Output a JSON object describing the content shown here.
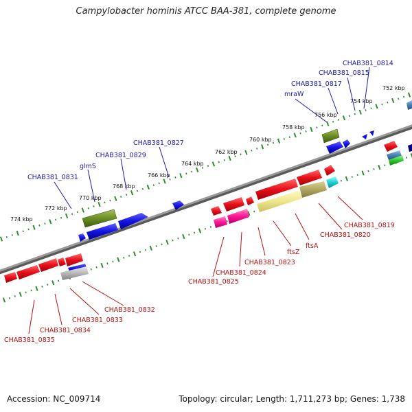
{
  "title": "Campylobacter hominis ATCC BAA-381, complete genome",
  "footer": {
    "accession": "Accession: NC_009714",
    "summary": "Topology: circular; Length: 1,711,273 bp; Genes: 1,738"
  },
  "scale_labels": [
    "752 kbp",
    "754 kbp",
    "756 kbp",
    "758 kbp",
    "760 kbp",
    "762 kbp",
    "764 kbp",
    "766 kbp",
    "768 kbp",
    "770 kbp",
    "772 kbp",
    "774 kbp"
  ],
  "forward_labels": [
    "CHAB381_0814",
    "CHAB381_0815",
    "CHAB381_0817",
    "mraW",
    "CHAB381_0827",
    "CHAB381_0829",
    "glmS",
    "CHAB381_0831"
  ],
  "reverse_labels": [
    "CHAB381_0819",
    "CHAB381_0820",
    "ftsA",
    "ftsZ",
    "CHAB381_0823",
    "CHAB381_0824",
    "CHAB381_0825",
    "CHAB381_0832",
    "CHAB381_0833",
    "CHAB381_0834",
    "CHAB381_0835"
  ],
  "colors": {
    "backbone": "#8a8a8a",
    "tick": "#2e8b2e",
    "forward_label": "#1a1aa8",
    "reverse_label": "#b81010",
    "red_gene": "#e8101a",
    "blue_gene": "#1414e0",
    "olive_gene": "#6b8e23",
    "magenta_gene": "#ff1493",
    "khaki_gene": "#eee68c",
    "cyan_gene": "#20d0d0",
    "gray_gene": "#b8b8b8"
  }
}
